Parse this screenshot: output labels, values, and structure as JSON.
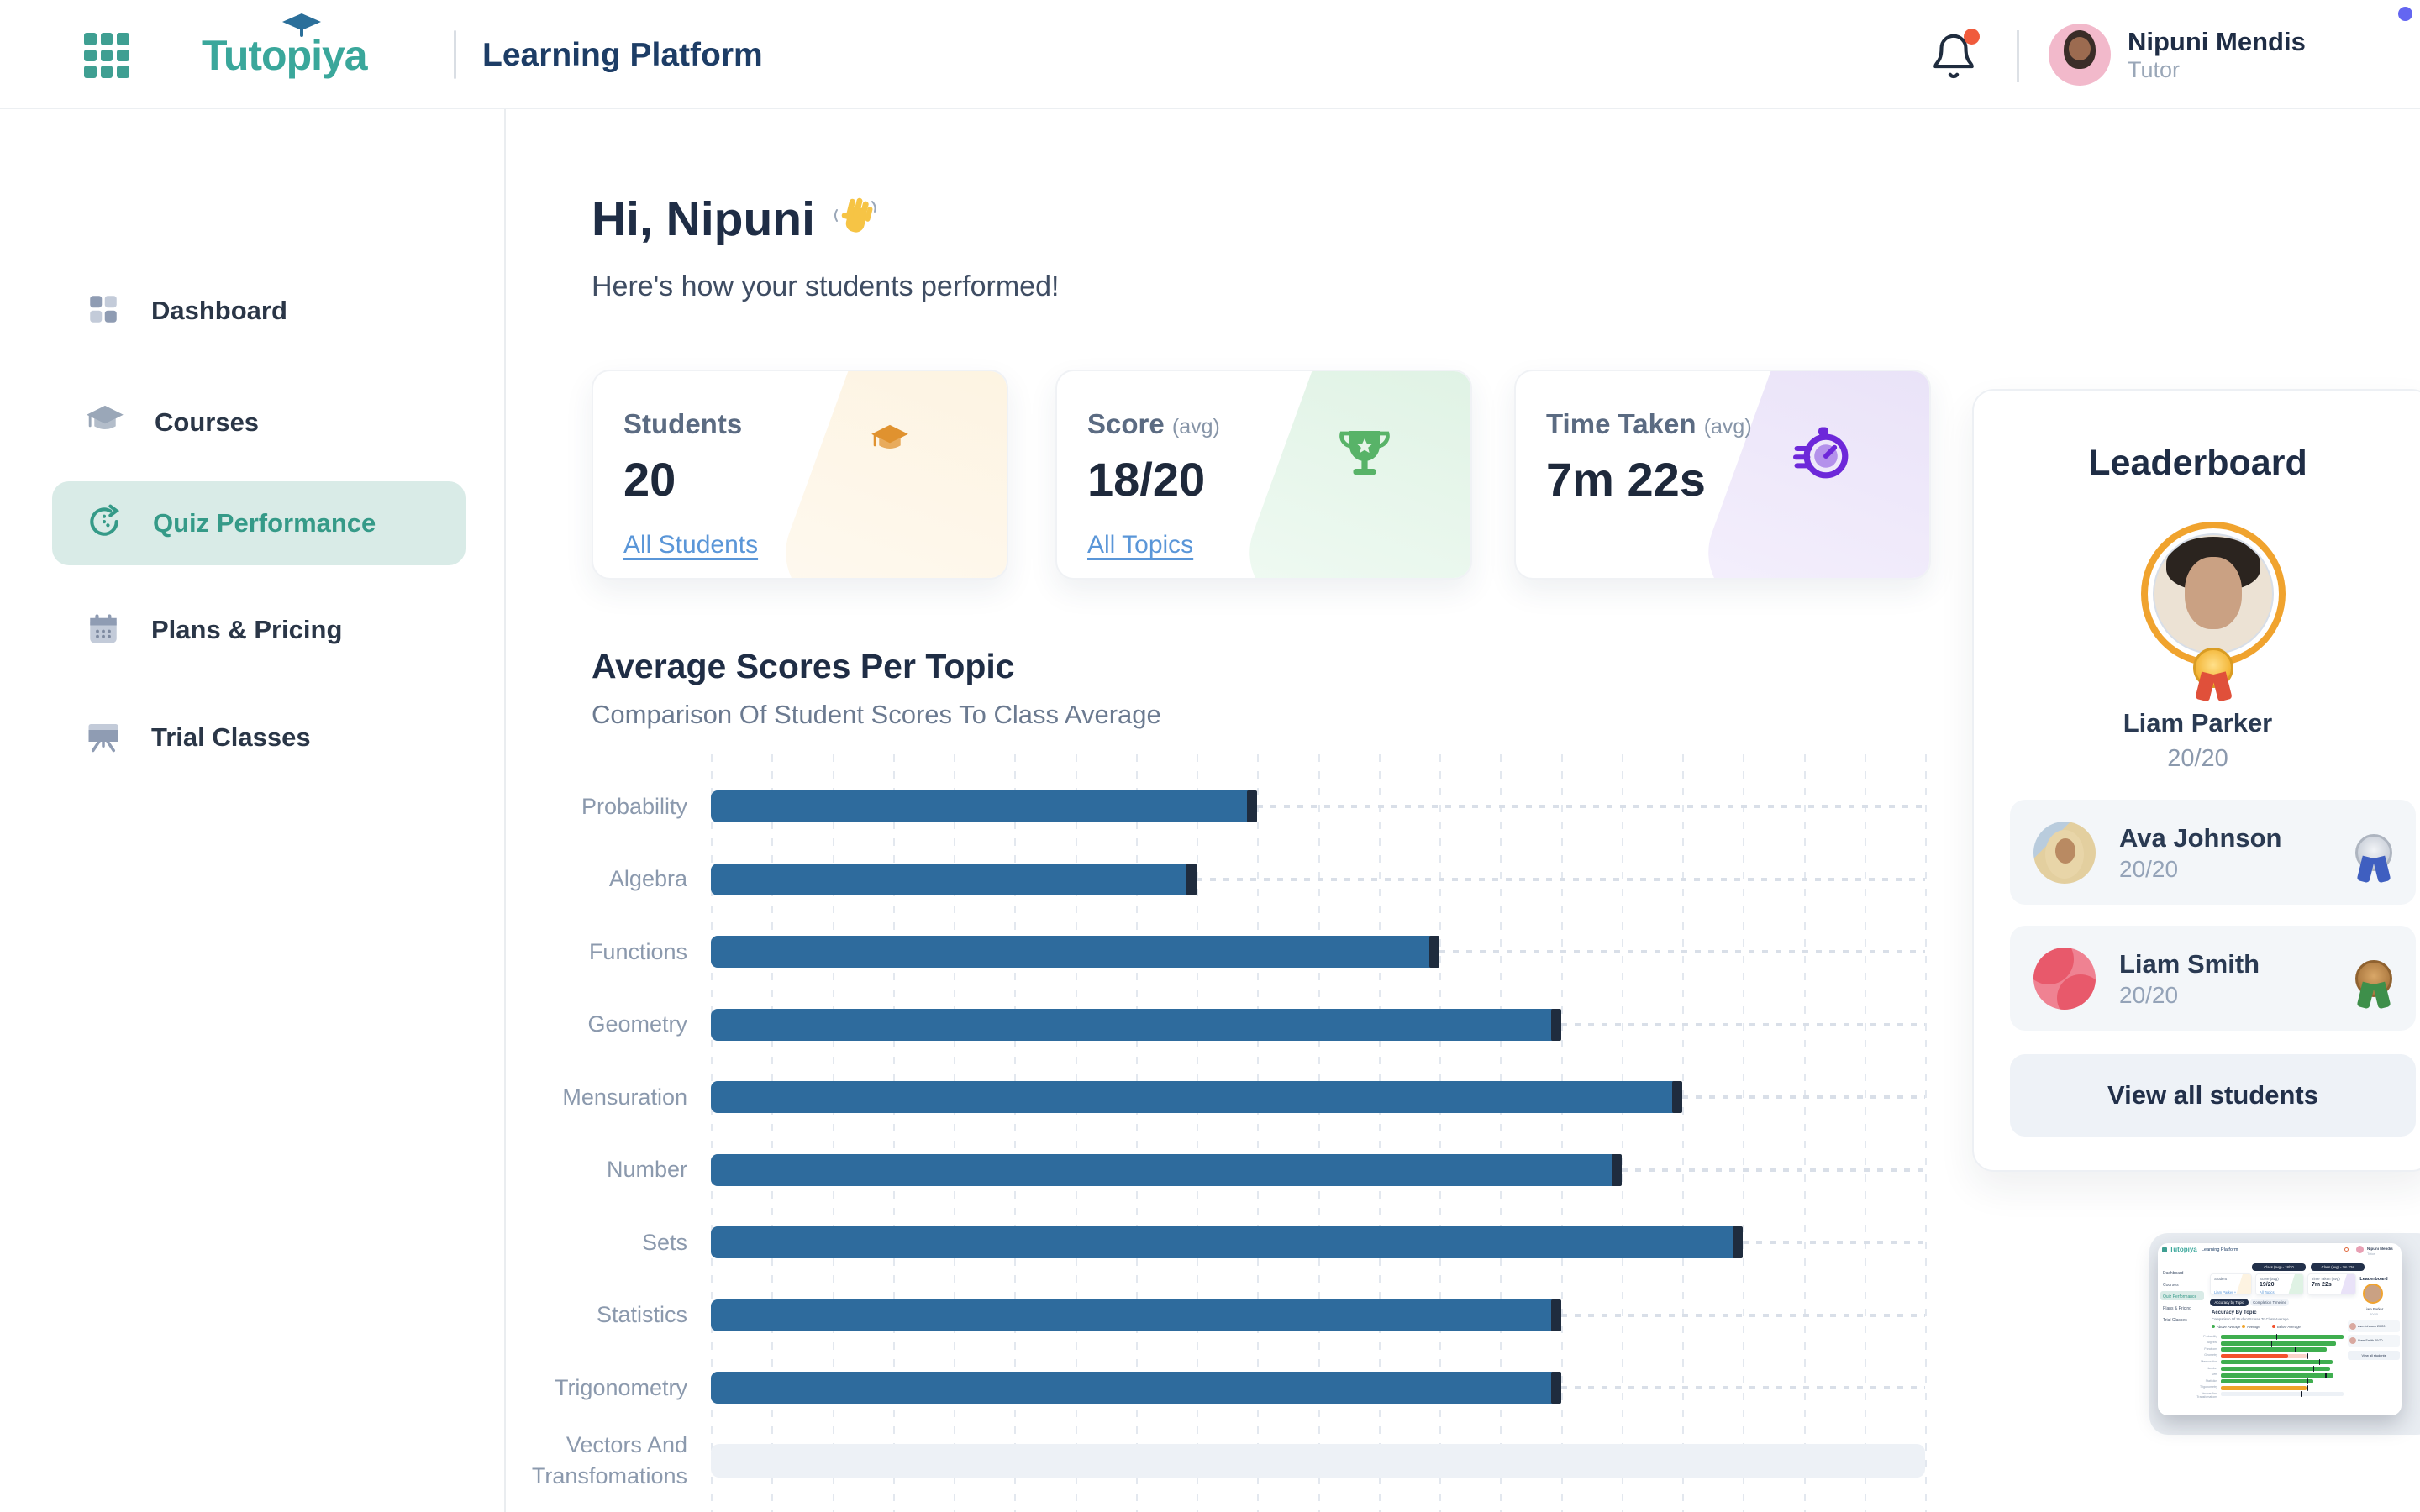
{
  "header": {
    "logo": "Tutopiya",
    "app_title": "Learning Platform",
    "user": {
      "name": "Nipuni Mendis",
      "role": "Tutor"
    }
  },
  "sidebar": {
    "items": [
      {
        "label": "Dashboard",
        "icon": "dashboard-icon",
        "active": false
      },
      {
        "label": "Courses",
        "icon": "graduation-cap-icon",
        "active": false
      },
      {
        "label": "Quiz Performance",
        "icon": "quiz-performance-icon",
        "active": true
      },
      {
        "label": "Plans & Pricing",
        "icon": "calendar-icon",
        "active": false
      },
      {
        "label": "Trial Classes",
        "icon": "presentation-icon",
        "active": false
      }
    ]
  },
  "main": {
    "greeting": "Hi, Nipuni",
    "subtitle": "Here's how your students performed!",
    "stats": [
      {
        "label": "Students",
        "suffix": "",
        "value": "20",
        "link": "All Students",
        "band": "#fdf3e1",
        "band2": "#fef9ef",
        "icon": "graduation-cap-icon",
        "accent": "#e0922f"
      },
      {
        "label": "Score",
        "suffix": "(avg)",
        "value": "18/20",
        "link": "All Topics",
        "band": "#dff2e4",
        "band2": "#effaf2",
        "icon": "trophy-icon",
        "accent": "#58b368"
      },
      {
        "label": "Time Taken",
        "suffix": "(avg)",
        "value": "7m 22s",
        "link": "",
        "band": "#e9e2f8",
        "band2": "#f4effc",
        "icon": "stopwatch-icon",
        "accent": "#6d28d9"
      }
    ]
  },
  "chart_data": {
    "type": "bar",
    "title": "Average Scores Per Topic",
    "subtitle": "Comparison Of Student Scores To Class Average",
    "categories": [
      "Probability",
      "Algebra",
      "Functions",
      "Geometry",
      "Mensuration",
      "Number",
      "Sets",
      "Statistics",
      "Trigonometry",
      "Vectors And Transfomations"
    ],
    "values": [
      9,
      8,
      12,
      14,
      16,
      15,
      17,
      14,
      14,
      0
    ],
    "xlabel": "",
    "ylabel": "",
    "xlim": [
      0,
      20
    ],
    "grid_step": 1,
    "bar_color": "#2e6b9d",
    "cap_color": "#1f2c3e",
    "grid": true,
    "legend_position": "none"
  },
  "leaderboard": {
    "title": "Leaderboard",
    "top": {
      "name": "Liam Parker",
      "score": "20/20",
      "medal": "gold"
    },
    "rows": [
      {
        "name": "Ava Johnson",
        "score": "20/20",
        "medal": "silver",
        "avatar": "ava"
      },
      {
        "name": "Liam Smith",
        "score": "20/20",
        "medal": "bronze",
        "avatar": "liam"
      }
    ],
    "view_all": "View all students"
  },
  "thumbnail": {
    "logo": "Tutopiya",
    "app_title": "Learning Platform",
    "user_name": "Nipuni Mendis",
    "user_role": "Tutor",
    "sidebar": [
      "Dashboard",
      "Courses",
      "Quiz Performance",
      "Plans & Pricing",
      "Trial Classes"
    ],
    "tooltips": [
      "Class (avg) - 18/20",
      "Class (avg) - 7m 22s"
    ],
    "cards": [
      {
        "label": "Student",
        "value": "",
        "link": "Liam Parker +",
        "band": "#fdf3e1"
      },
      {
        "label": "Score (avg)",
        "value": "19/20",
        "link": "All Topics",
        "band": "#dff2e4"
      },
      {
        "label": "Time Taken (avg)",
        "value": "7m 22s",
        "link": "",
        "band": "#e9e2f8"
      }
    ],
    "tabs": [
      "Accuracy by Topic",
      "Completion Timeline"
    ],
    "heading": "Accuracy By Topic",
    "subheading": "Comparison Of Student Scores To Class Average",
    "legend": [
      {
        "label": "Above Average",
        "color": "#3fae4f"
      },
      {
        "label": "Average",
        "color": "#f0a32b"
      },
      {
        "label": "Below Average",
        "color": "#f4502c"
      }
    ],
    "bars": [
      {
        "color": "#3fae4f",
        "w": 1.0,
        "tick": 0.45
      },
      {
        "color": "#3fae4f",
        "w": 0.94,
        "tick": 0.41
      },
      {
        "color": "#3fae4f",
        "w": 0.86,
        "tick": 0.6
      },
      {
        "color": "#f4502c",
        "w": 0.55,
        "ext": 0.7,
        "tick": 0.7
      },
      {
        "color": "#3fae4f",
        "w": 0.91,
        "tick": 0.8
      },
      {
        "color": "#3fae4f",
        "w": 0.89,
        "tick": 0.75
      },
      {
        "color": "#3fae4f",
        "w": 0.92,
        "tick": 0.85
      },
      {
        "color": "#3fae4f",
        "w": 0.75,
        "tick": 0.7
      },
      {
        "color": "#f0a32b",
        "w": 0.7,
        "tick": 0.7
      },
      {
        "color": "track",
        "w": 0,
        "tick": 0.65
      }
    ],
    "leaderboard": {
      "title": "Leaderboard",
      "top_name": "Liam Parker",
      "top_score": "20/20",
      "rows": [
        [
          "Ava Johnson",
          "20/20"
        ],
        [
          "Liam Smith",
          "20/20"
        ]
      ],
      "view_all": "View all students"
    }
  }
}
